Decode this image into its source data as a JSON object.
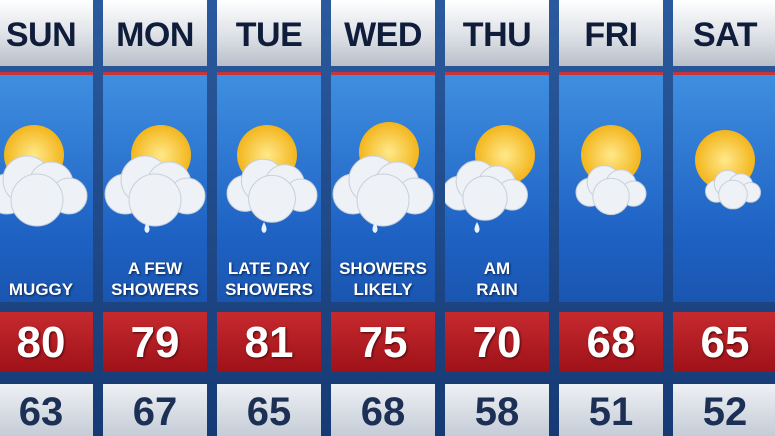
{
  "days": [
    {
      "day": "SUN",
      "condition": [
        "MUGGY"
      ],
      "high": 80,
      "low": 63
    },
    {
      "day": "MON",
      "condition": [
        "A FEW",
        "SHOWERS"
      ],
      "high": 79,
      "low": 67
    },
    {
      "day": "TUE",
      "condition": [
        "LATE DAY",
        "SHOWERS"
      ],
      "high": 81,
      "low": 65
    },
    {
      "day": "WED",
      "condition": [
        "SHOWERS",
        "LIKELY"
      ],
      "high": 75,
      "low": 68
    },
    {
      "day": "THU",
      "condition": [
        "AM",
        "RAIN"
      ],
      "high": 70,
      "low": 58
    },
    {
      "day": "FRI",
      "high": 68,
      "low": 51
    },
    {
      "day": "SAT",
      "high": 65,
      "low": 52
    }
  ]
}
